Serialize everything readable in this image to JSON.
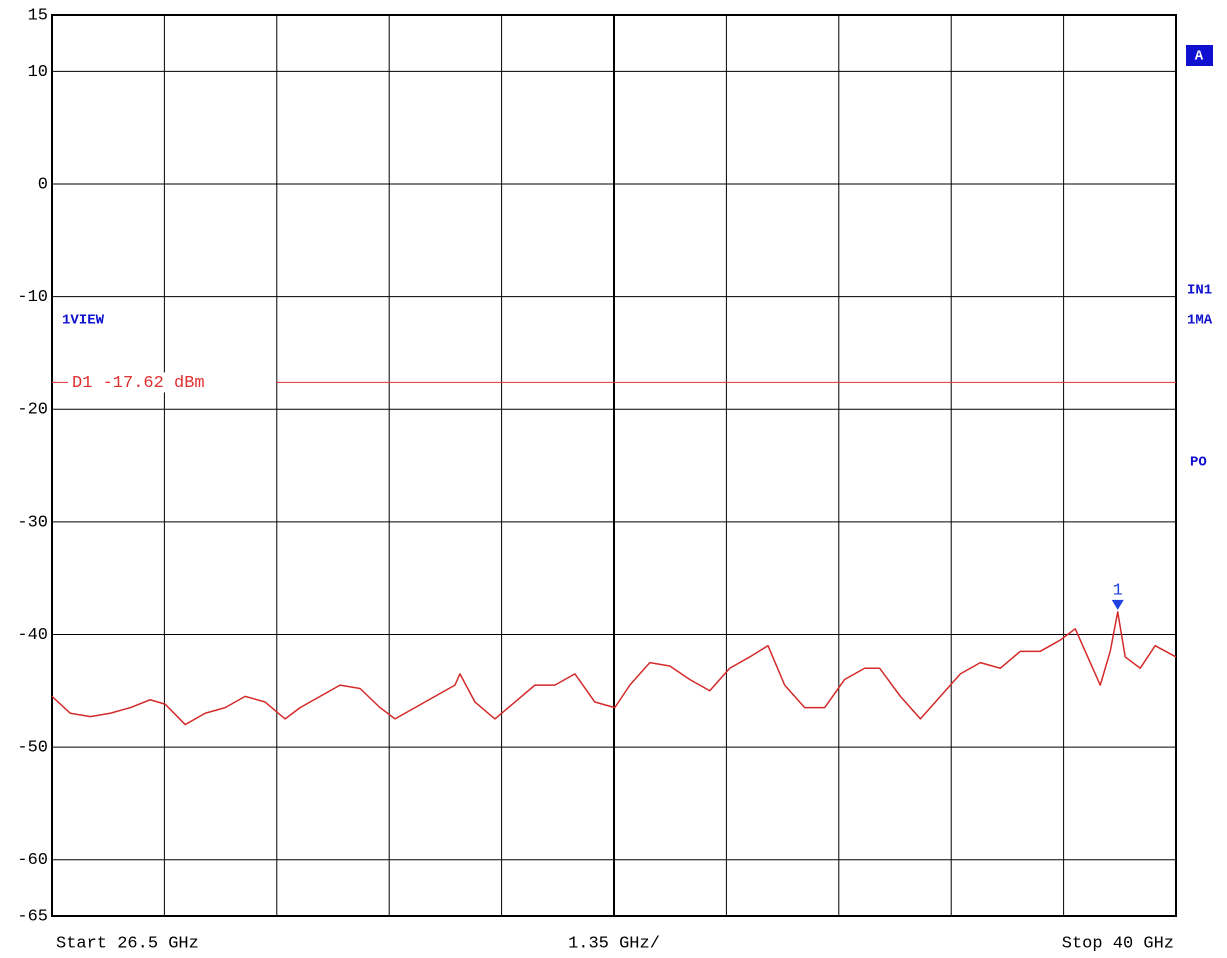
{
  "chart_data": {
    "type": "line",
    "x_start_label": "Start 26.5 GHz",
    "x_span_label": "1.35 GHz/",
    "x_stop_label": "Stop 40 GHz",
    "view_label": "1VIEW",
    "side_labels": [
      "A",
      "IN1",
      "1MA",
      "PO"
    ],
    "xlim": [
      26.5,
      40
    ],
    "xticks": [
      26.5,
      27.85,
      29.2,
      30.55,
      31.9,
      33.25,
      34.6,
      35.95,
      37.3,
      38.65,
      40
    ],
    "ylim": [
      -65,
      15
    ],
    "yticks": [
      15,
      10,
      0,
      -10,
      -20,
      -30,
      -40,
      -50,
      -60,
      -65
    ],
    "grid": true,
    "display_line": {
      "value": -17.62,
      "label": "D1 -17.62 dBm",
      "color": "#e03030"
    },
    "marker": {
      "label": "1",
      "x": 39.3,
      "y": -38,
      "color": "#2040e0"
    },
    "series": [
      {
        "color": "#d42a2a",
        "x": [
          26.5,
          26.72,
          26.96,
          27.2,
          27.44,
          27.68,
          27.86,
          28.1,
          28.34,
          28.58,
          28.82,
          29.06,
          29.3,
          29.48,
          29.72,
          29.96,
          30.2,
          30.44,
          30.62,
          30.86,
          31.1,
          31.34,
          31.4,
          31.58,
          31.82,
          32.06,
          32.3,
          32.54,
          32.78,
          33.02,
          33.26,
          33.44,
          33.68,
          33.92,
          34.16,
          34.4,
          34.64,
          34.88,
          35.1,
          35.3,
          35.54,
          35.78,
          36.02,
          36.26,
          36.44,
          36.69,
          36.93,
          37.17,
          37.41,
          37.65,
          37.89,
          38.13,
          38.37,
          38.61,
          38.79,
          38.97,
          39.09,
          39.21,
          39.3,
          39.39,
          39.57,
          39.75,
          40
        ],
        "values": [
          -45.5,
          -47,
          -47.3,
          -47,
          -46.5,
          -45.8,
          -46.2,
          -48,
          -47,
          -46.5,
          -45.5,
          -46,
          -47.5,
          -46.5,
          -45.5,
          -44.5,
          -44.8,
          -46.5,
          -47.5,
          -46.5,
          -45.5,
          -44.5,
          -43.5,
          -46,
          -47.5,
          -46,
          -44.5,
          -44.5,
          -43.5,
          -46,
          -46.5,
          -44.5,
          -42.5,
          -42.8,
          -44,
          -45,
          -43,
          -42,
          -41,
          -44.5,
          -46.5,
          -46.5,
          -44,
          -43,
          -43,
          -45.5,
          -47.5,
          -45.5,
          -43.5,
          -42.5,
          -43,
          -41.5,
          -41.5,
          -40.5,
          -39.5,
          -42.5,
          -44.5,
          -41.5,
          -38,
          -42,
          -43,
          -41,
          -42
        ]
      }
    ]
  }
}
